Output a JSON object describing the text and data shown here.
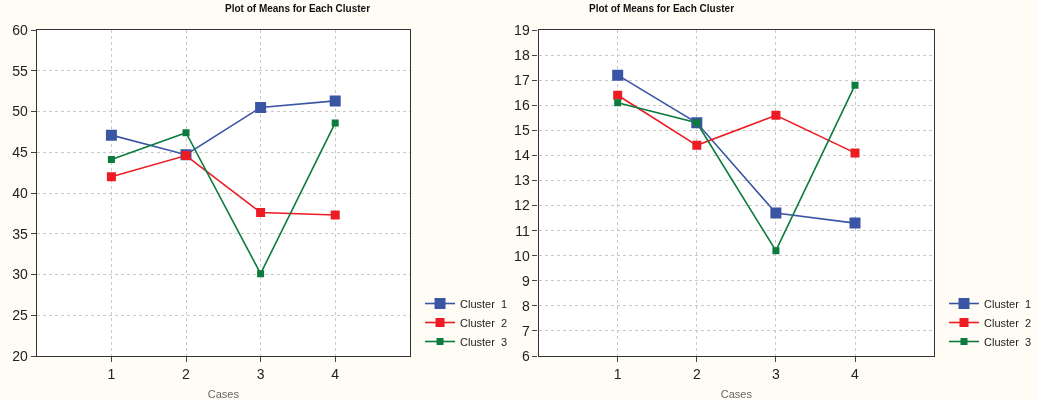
{
  "chart_data": [
    {
      "type": "line",
      "title": "Plot of Means for Each Cluster",
      "xlabel": "Cases",
      "x": [
        1,
        2,
        3,
        4
      ],
      "xlim": [
        0,
        5
      ],
      "xticks": [
        1,
        2,
        3,
        4
      ],
      "ylim": [
        20,
        60
      ],
      "yticks": [
        20,
        25,
        30,
        35,
        40,
        45,
        50,
        55,
        60
      ],
      "grid": true,
      "legend": "bottom right",
      "marker": "square",
      "line_style": "solid",
      "series": [
        {
          "name": "Cluster  1",
          "color": "#3a55a4",
          "values": [
            47.1,
            44.7,
            50.5,
            51.3
          ]
        },
        {
          "name": "Cluster  2",
          "color": "#ed1c24",
          "values": [
            42.0,
            44.6,
            37.6,
            37.3
          ]
        },
        {
          "name": "Cluster  3",
          "color": "#0b7c3d",
          "values": [
            44.1,
            47.4,
            30.1,
            48.6
          ]
        }
      ]
    },
    {
      "type": "line",
      "title": "Plot of Means for Each Cluster",
      "xlabel": "Cases",
      "x": [
        1,
        2,
        3,
        4
      ],
      "xlim": [
        0,
        5
      ],
      "xticks": [
        1,
        2,
        3,
        4
      ],
      "ylim": [
        6,
        19
      ],
      "yticks": [
        6,
        7,
        8,
        9,
        10,
        11,
        12,
        13,
        14,
        15,
        16,
        17,
        18,
        19
      ],
      "grid": true,
      "legend": "bottom right",
      "marker": "square",
      "line_style": "solid",
      "series": [
        {
          "name": "Cluster  1",
          "color": "#3a55a4",
          "values": [
            17.2,
            15.3,
            11.7,
            11.3
          ]
        },
        {
          "name": "Cluster  2",
          "color": "#ed1c24",
          "values": [
            16.4,
            14.4,
            15.6,
            14.1
          ]
        },
        {
          "name": "Cluster  3",
          "color": "#0b7c3d",
          "values": [
            16.1,
            15.3,
            10.2,
            16.8
          ]
        }
      ]
    }
  ]
}
